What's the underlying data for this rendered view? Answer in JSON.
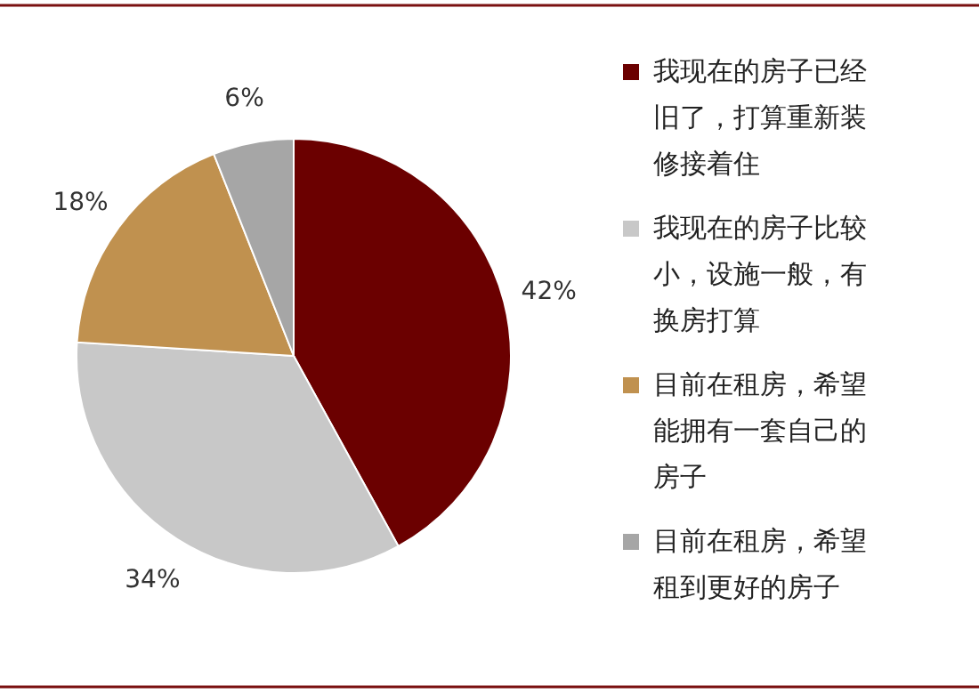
{
  "chart_data": {
    "type": "pie",
    "categories": [
      "我现在的房子已经旧了，打算重新装修接着住",
      "我现在的房子比较小，设施一般，有换房打算",
      "目前在租房，希望能拥有一套自己的房子",
      "目前在租房，希望租到更好的房子"
    ],
    "values": [
      42,
      34,
      18,
      6
    ],
    "value_labels": [
      "42%",
      "34%",
      "18%",
      "6%"
    ],
    "colors": [
      "#6b0000",
      "#c8c8c8",
      "#c0914f",
      "#a6a6a6"
    ],
    "legend": "right"
  }
}
